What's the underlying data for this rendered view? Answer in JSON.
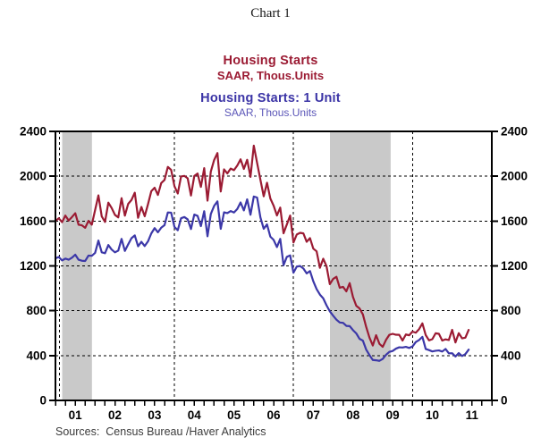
{
  "page": {
    "title": "Chart 1",
    "source_note": "Sources:  Census Bureau /Haver Analytics",
    "background": "#ffffff"
  },
  "titles": {
    "series1_title": "Housing Starts",
    "series1_subtitle": "SAAR, Thous.Units",
    "series1_color": "#9B1B33",
    "series2_title": "Housing Starts: 1 Unit",
    "series2_subtitle": "SAAR, Thous.Units",
    "series2_title_color": "#3B34A6",
    "series2_subtitle_color": "#5B56B8"
  },
  "chart_data": {
    "type": "line",
    "title": "Housing Starts vs Housing Starts: 1 Unit",
    "xlabel": "",
    "ylabel": "SAAR, Thous.Units",
    "x_start": 2001.0,
    "x_step": 0.0833333,
    "xlim": [
      2001.0,
      2012.0
    ],
    "ylim": [
      0,
      2400
    ],
    "y_ticks": [
      0,
      400,
      800,
      1200,
      1600,
      2000,
      2400
    ],
    "y_ticks_both_sides": true,
    "h_gridlines": [
      400,
      800,
      1200,
      1600,
      2000
    ],
    "v_gridlines": [
      2001.1,
      2004.0,
      2007.0,
      2010.0
    ],
    "grid_style": "dashed",
    "x_minor_tick_interval": 0.25,
    "x_year_labels": [
      "01",
      "02",
      "03",
      "04",
      "05",
      "06",
      "07",
      "08",
      "09",
      "10",
      "11"
    ],
    "axis_color": "#000000",
    "recession_bands": {
      "color": "#c9c9c9",
      "ranges": [
        [
          2001.17,
          2001.92
        ],
        [
          2007.92,
          2009.45
        ]
      ]
    },
    "series": [
      {
        "name": "Housing Starts",
        "units": "SAAR, Thous.Units",
        "color": "#9B1B33",
        "values": [
          1600,
          1625,
          1590,
          1649,
          1605,
          1636,
          1670,
          1567,
          1562,
          1540,
          1602,
          1568,
          1698,
          1829,
          1642,
          1592,
          1764,
          1717,
          1655,
          1633,
          1804,
          1648,
          1753,
          1788,
          1853,
          1629,
          1726,
          1643,
          1751,
          1867,
          1897,
          1833,
          1939,
          1967,
          2083,
          2057,
          1911,
          1846,
          1998,
          2003,
          1981,
          1828,
          2002,
          2024,
          1905,
          2072,
          1782,
          2042,
          2144,
          2207,
          1864,
          2061,
          2025,
          2068,
          2054,
          2095,
          2151,
          2065,
          2147,
          1994,
          2273,
          2119,
          1969,
          1821,
          1942,
          1802,
          1737,
          1650,
          1720,
          1491,
          1570,
          1649,
          1409,
          1480,
          1495,
          1490,
          1415,
          1448,
          1354,
          1330,
          1183,
          1264,
          1197,
          1037,
          1084,
          1103,
          1005,
          1013,
          973,
          1046,
          923,
          844,
          820,
          767,
          655,
          560,
          490,
          582,
          505,
          478,
          540,
          585,
          594,
          586,
          585,
          534,
          588,
          581,
          614,
          604,
          636,
          687,
          583,
          536,
          546,
          599,
          594,
          534,
          545,
          539,
          630,
          517,
          600,
          554,
          560,
          629
        ]
      },
      {
        "name": "Housing Starts: 1 Unit",
        "units": "SAAR, Thous.Units",
        "color": "#3C38A8",
        "values": [
          1267,
          1280,
          1249,
          1265,
          1255,
          1273,
          1300,
          1255,
          1246,
          1244,
          1292,
          1290,
          1316,
          1426,
          1321,
          1313,
          1386,
          1346,
          1321,
          1336,
          1441,
          1334,
          1392,
          1447,
          1472,
          1375,
          1415,
          1377,
          1419,
          1490,
          1537,
          1500,
          1541,
          1564,
          1677,
          1675,
          1548,
          1518,
          1625,
          1636,
          1615,
          1529,
          1658,
          1646,
          1555,
          1688,
          1464,
          1663,
          1735,
          1776,
          1531,
          1678,
          1671,
          1689,
          1676,
          1707,
          1766,
          1695,
          1794,
          1656,
          1819,
          1810,
          1633,
          1531,
          1570,
          1461,
          1432,
          1368,
          1441,
          1206,
          1281,
          1294,
          1139,
          1194,
          1199,
          1177,
          1133,
          1154,
          1063,
          993,
          944,
          911,
          848,
          795,
          756,
          720,
          695,
          692,
          665,
          663,
          627,
          598,
          549,
          533,
          453,
          404,
          361,
          358,
          353,
          370,
          407,
          433,
          441,
          462,
          474,
          472,
          478,
          468,
          481,
          521,
          539,
          567,
          459,
          449,
          437,
          443,
          446,
          436,
          459,
          420,
          421,
          392,
          422,
          396,
          413,
          453
        ]
      }
    ]
  }
}
